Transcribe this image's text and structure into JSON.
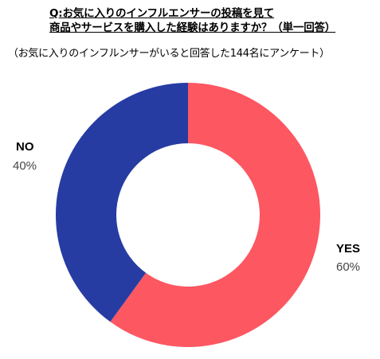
{
  "chart_data": {
    "type": "pie",
    "donut": true,
    "title_lines": [
      "Q:お気に入りのインフルエンサーの投稿を見て",
      "商品やサービスを購入した経験はありますか？（単一回答）"
    ],
    "subtitle": "（お気に入りのインフルンサーがいると回答した144名にアンケート）",
    "slices": [
      {
        "label": "YES",
        "value": 60,
        "value_label": "60%",
        "color": "#fd5762"
      },
      {
        "label": "NO",
        "value": 40,
        "value_label": "40%",
        "color": "#263ca3"
      }
    ],
    "start_angle": "12 o'clock",
    "direction": "clockwise"
  }
}
